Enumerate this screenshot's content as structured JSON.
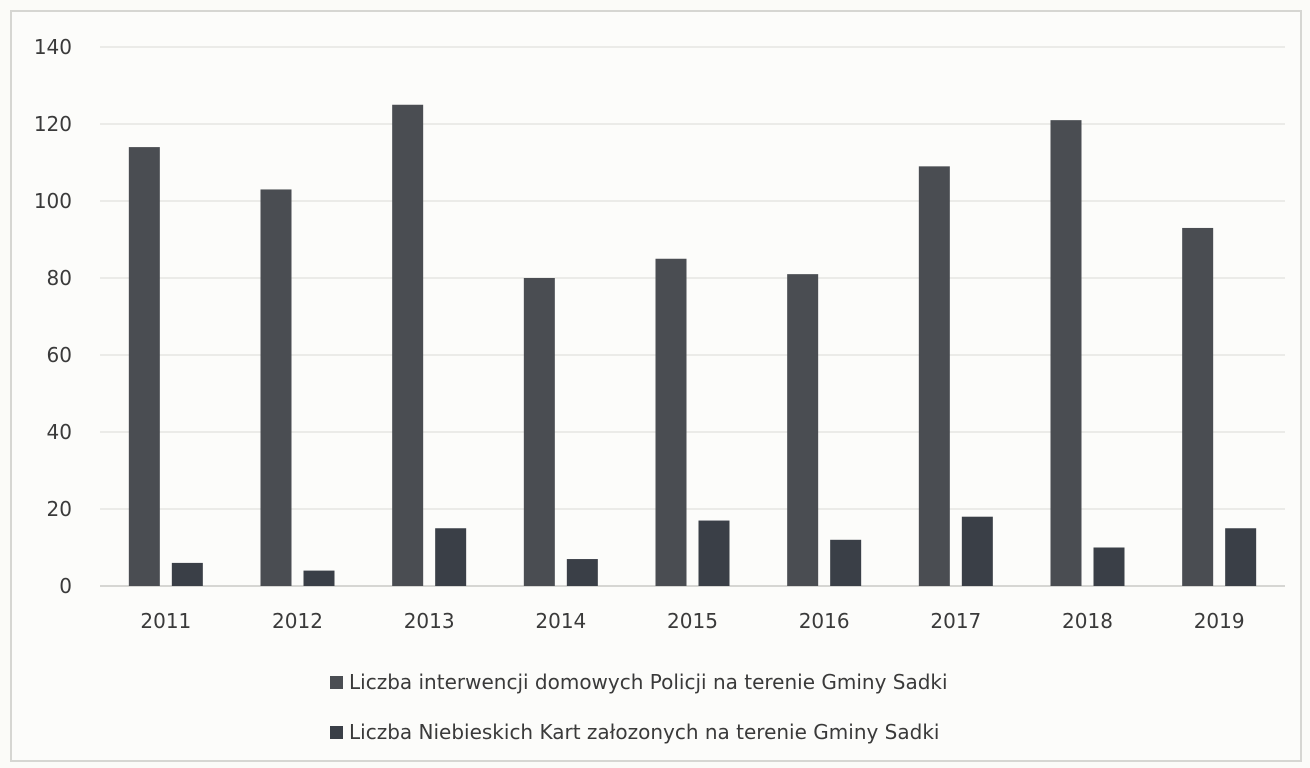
{
  "chart_data": {
    "type": "bar",
    "categories": [
      "2011",
      "2012",
      "2013",
      "2014",
      "2015",
      "2016",
      "2017",
      "2018",
      "2019"
    ],
    "series": [
      {
        "name": "Liczba interwencji domowych Policji na terenie Gminy Sadki",
        "values": [
          114,
          103,
          125,
          80,
          85,
          81,
          109,
          121,
          93
        ],
        "color": "#4a4d52"
      },
      {
        "name": "Liczba Niebieskich Kart załozonych na terenie Gminy Sadki",
        "values": [
          6,
          4,
          15,
          7,
          17,
          12,
          18,
          10,
          15
        ],
        "color": "#3a3f47"
      }
    ],
    "yticks": [
      0,
      20,
      40,
      60,
      80,
      100,
      120,
      140
    ],
    "ylim": [
      0,
      140
    ],
    "grid": true,
    "legend_position": "bottom",
    "title": "",
    "xlabel": "",
    "ylabel": ""
  }
}
